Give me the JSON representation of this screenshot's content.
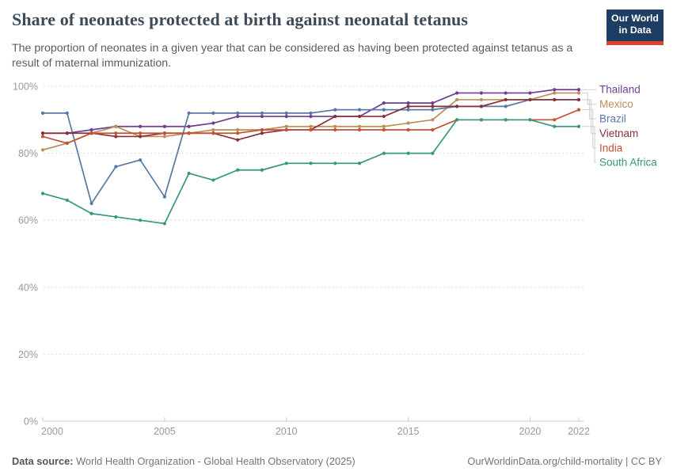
{
  "header": {
    "title": "Share of neonates protected at birth against neonatal tetanus",
    "subtitle": "The proportion of neonates in a given year that can be considered as having been protected against tetanus as a result of maternal immunization.",
    "logo": {
      "line1": "Our World",
      "line2": "in Data",
      "bg_color": "#1d3d63",
      "stripe_color": "#e0422e"
    }
  },
  "chart_data": {
    "type": "line",
    "title": "Share of neonates protected at birth against neonatal tetanus",
    "x": [
      2000,
      2001,
      2002,
      2003,
      2004,
      2005,
      2006,
      2007,
      2008,
      2009,
      2010,
      2011,
      2012,
      2013,
      2014,
      2015,
      2016,
      2017,
      2018,
      2019,
      2020,
      2021,
      2022
    ],
    "series": [
      {
        "name": "Thailand",
        "color": "#6d3e91",
        "values": [
          86,
          86,
          87,
          88,
          88,
          88,
          88,
          89,
          91,
          91,
          91,
          91,
          91,
          91,
          95,
          95,
          95,
          98,
          98,
          98,
          98,
          99,
          99
        ]
      },
      {
        "name": "Mexico",
        "color": "#bc8e5a",
        "values": [
          81,
          83,
          86,
          88,
          85,
          85,
          86,
          87,
          87,
          87,
          88,
          88,
          88,
          88,
          88,
          89,
          90,
          96,
          96,
          96,
          96,
          98,
          98
        ]
      },
      {
        "name": "Brazil",
        "color": "#5878a8",
        "values": [
          92,
          92,
          65,
          76,
          78,
          67,
          92,
          92,
          92,
          92,
          92,
          92,
          93,
          93,
          93,
          93,
          93,
          94,
          94,
          94,
          96,
          96,
          96
        ]
      },
      {
        "name": "Vietnam",
        "color": "#883039",
        "values": [
          86,
          86,
          86,
          85,
          85,
          86,
          86,
          86,
          84,
          86,
          87,
          87,
          91,
          91,
          91,
          94,
          94,
          94,
          94,
          96,
          96,
          96,
          96
        ]
      },
      {
        "name": "India",
        "color": "#c4512f",
        "values": [
          85,
          83,
          86,
          86,
          86,
          86,
          86,
          86,
          86,
          87,
          87,
          87,
          87,
          87,
          87,
          87,
          87,
          90,
          90,
          90,
          90,
          90,
          93
        ]
      },
      {
        "name": "South Africa",
        "color": "#35977b",
        "values": [
          68,
          66,
          62,
          61,
          60,
          59,
          74,
          72,
          75,
          75,
          77,
          77,
          77,
          77,
          80,
          80,
          80,
          90,
          90,
          90,
          90,
          88,
          88
        ]
      }
    ],
    "ylim": [
      0,
      100
    ],
    "yticks": [
      0,
      20,
      40,
      60,
      80,
      100
    ],
    "ytick_suffix": "%",
    "xticks": [
      2000,
      2005,
      2010,
      2015,
      2020,
      2022
    ],
    "grid": "horizontal-dashed",
    "legend_position": "right",
    "axis_color": "#cccccc",
    "grid_color": "#dddddd",
    "tick_label_color": "#999999"
  },
  "footer": {
    "source_label": "Data source:",
    "source_text": " World Health Organization - Global Health Observatory (2025)",
    "credit": "OurWorldinData.org/child-mortality | CC BY"
  }
}
